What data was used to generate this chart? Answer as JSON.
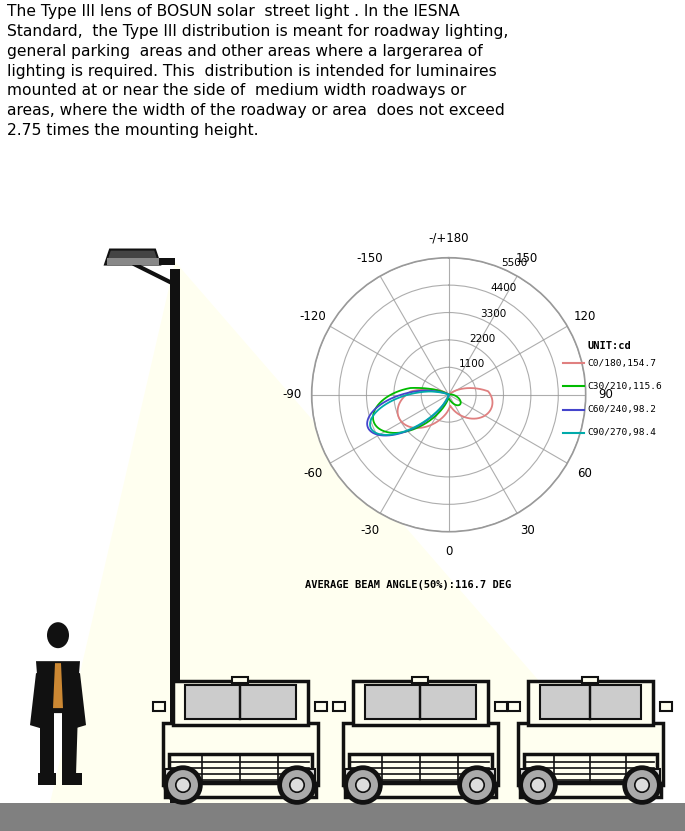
{
  "title_text": "The Type III lens of BOSUN solar  street light . In the IESNA\nStandard,  the Type III distribution is meant for roadway lighting,\ngeneral parking  areas and other areas where a largerarea of\nlighting is required. This  distribution is intended for luminaires\nmounted at or near the side of  medium width roadways or\nareas, where the width of the roadway or area  does not exceed\n2.75 times the mounting height.",
  "legend_items": [
    "C0/180,154.7",
    "C30/210,115.6",
    "C60/240,98.2",
    "C90/270,98.4"
  ],
  "legend_colors": [
    "#e08080",
    "#00bb00",
    "#4444cc",
    "#00aaaa"
  ],
  "beam_angle_text": "AVERAGE BEAM ANGLE(50%):116.7 DEG",
  "unit_text": "UNIT:cd",
  "bg_color": "#ffffff",
  "grid_color": "#999999",
  "light_cone_color": "#fffff0",
  "ground_color": "#808080",
  "pole_color": "#111111"
}
